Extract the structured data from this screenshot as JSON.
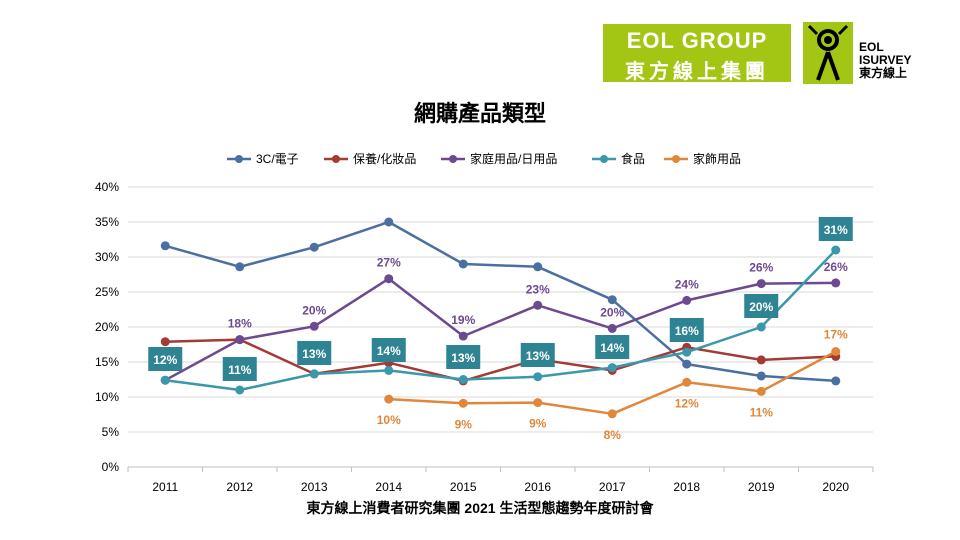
{
  "logos": {
    "group_line1": "EOL GROUP",
    "group_line2": "東方線上集團",
    "survey_line1": "EOL",
    "survey_line2": "ISURVEY",
    "survey_line3": "東方線上"
  },
  "footer": "東方線上消費者研究集團 2021 生活型態趨勢年度研討會",
  "chart_data": {
    "type": "line",
    "title": "網購產品類型",
    "xlabel": "",
    "ylabel": "",
    "categories": [
      "2011",
      "2012",
      "2013",
      "2014",
      "2015",
      "2016",
      "2017",
      "2018",
      "2019",
      "2020"
    ],
    "ylim": [
      0,
      40
    ],
    "yticks": [
      "0%",
      "5%",
      "10%",
      "15%",
      "20%",
      "25%",
      "30%",
      "35%",
      "40%"
    ],
    "grid": true,
    "legend": "top",
    "series": [
      {
        "name": "3C/電子",
        "color": "#4a6fa0",
        "values": [
          31.6,
          28.6,
          31.4,
          35.0,
          29.0,
          28.6,
          23.9,
          14.7,
          13.0,
          12.3
        ],
        "labels": []
      },
      {
        "name": "保養/化妝品",
        "color": "#a33a35",
        "values": [
          17.9,
          18.2,
          13.3,
          14.9,
          12.3,
          15.4,
          13.8,
          17.1,
          15.3,
          15.8
        ],
        "labels": []
      },
      {
        "name": "家庭用品/日用品",
        "color": "#6b4a8f",
        "values": [
          12.4,
          18.2,
          20.1,
          26.9,
          18.7,
          23.1,
          19.8,
          23.8,
          26.2,
          26.3
        ],
        "labels": [
          "",
          "18%",
          "20%",
          "27%",
          "19%",
          "23%",
          "20%",
          "24%",
          "26%",
          "26%"
        ]
      },
      {
        "name": "食品",
        "color": "#3a98ab",
        "values": [
          12.4,
          11.0,
          13.3,
          13.8,
          12.5,
          12.9,
          14.2,
          16.4,
          20.0,
          31.0
        ],
        "labels": [
          "12%",
          "11%",
          "13%",
          "14%",
          "13%",
          "13%",
          "14%",
          "16%",
          "20%",
          "31%"
        ]
      },
      {
        "name": "家飾用品",
        "color": "#e0873c",
        "values": [
          null,
          null,
          null,
          9.7,
          9.1,
          9.2,
          7.6,
          12.1,
          10.8,
          16.5
        ],
        "labels": [
          "",
          "",
          "",
          "10%",
          "9%",
          "9%",
          "8%",
          "12%",
          "11%",
          "17%"
        ]
      }
    ]
  }
}
